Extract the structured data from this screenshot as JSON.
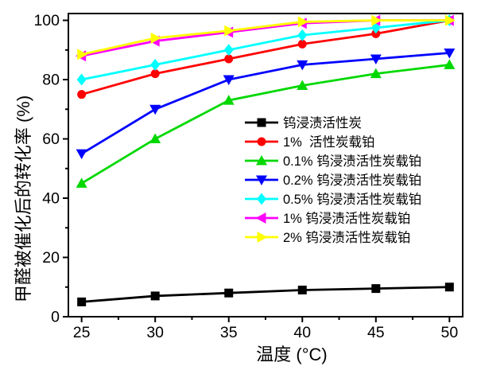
{
  "chart_data": {
    "type": "line",
    "x": [
      25,
      30,
      35,
      40,
      45,
      50
    ],
    "series": [
      {
        "name": "钨浸渍活性炭",
        "color": "#000000",
        "marker": "square",
        "values": [
          5,
          7,
          8,
          9,
          9.5,
          10
        ]
      },
      {
        "name": "1%  活性炭载铂",
        "color": "#FF0000",
        "marker": "circle",
        "values": [
          75,
          82,
          87,
          92,
          95.5,
          100
        ]
      },
      {
        "name": "0.1% 钨浸渍活性炭载铂",
        "color": "#00D800",
        "marker": "triangle-up",
        "values": [
          45,
          60,
          73,
          78,
          82,
          85
        ]
      },
      {
        "name": "0.2% 钨浸渍活性炭载铂",
        "color": "#0000FF",
        "marker": "triangle-down",
        "values": [
          55,
          70,
          80,
          85,
          87,
          89
        ]
      },
      {
        "name": "0.5% 钨浸渍活性炭载铂",
        "color": "#00FFFF",
        "marker": "diamond",
        "values": [
          80,
          85,
          90,
          95,
          97.5,
          100
        ]
      },
      {
        "name": "1% 钨浸渍活性炭载铂",
        "color": "#FF00FF",
        "marker": "triangle-left",
        "values": [
          88,
          93,
          96,
          99,
          100,
          100
        ]
      },
      {
        "name": "2% 钨浸渍活性炭载铂",
        "color": "#FFFF00",
        "marker": "triangle-right",
        "values": [
          88.5,
          94,
          96.5,
          99.5,
          100,
          100
        ]
      }
    ],
    "xlabel": "温度 (°C)",
    "ylabel": "甲醛被催化后的转化率 (%)",
    "xlim": [
      24.1,
      50.9
    ],
    "ylim": [
      0,
      102.3
    ],
    "xticks": [
      25,
      30,
      35,
      40,
      45,
      50
    ],
    "yticks": [
      0,
      20,
      40,
      60,
      80,
      100
    ],
    "minor_xticks": [
      27.5,
      32.5,
      37.5,
      42.5,
      47.5
    ],
    "minor_yticks": [
      10,
      30,
      50,
      70,
      90
    ],
    "grid": false,
    "legend_position": "inside-right-middle"
  }
}
